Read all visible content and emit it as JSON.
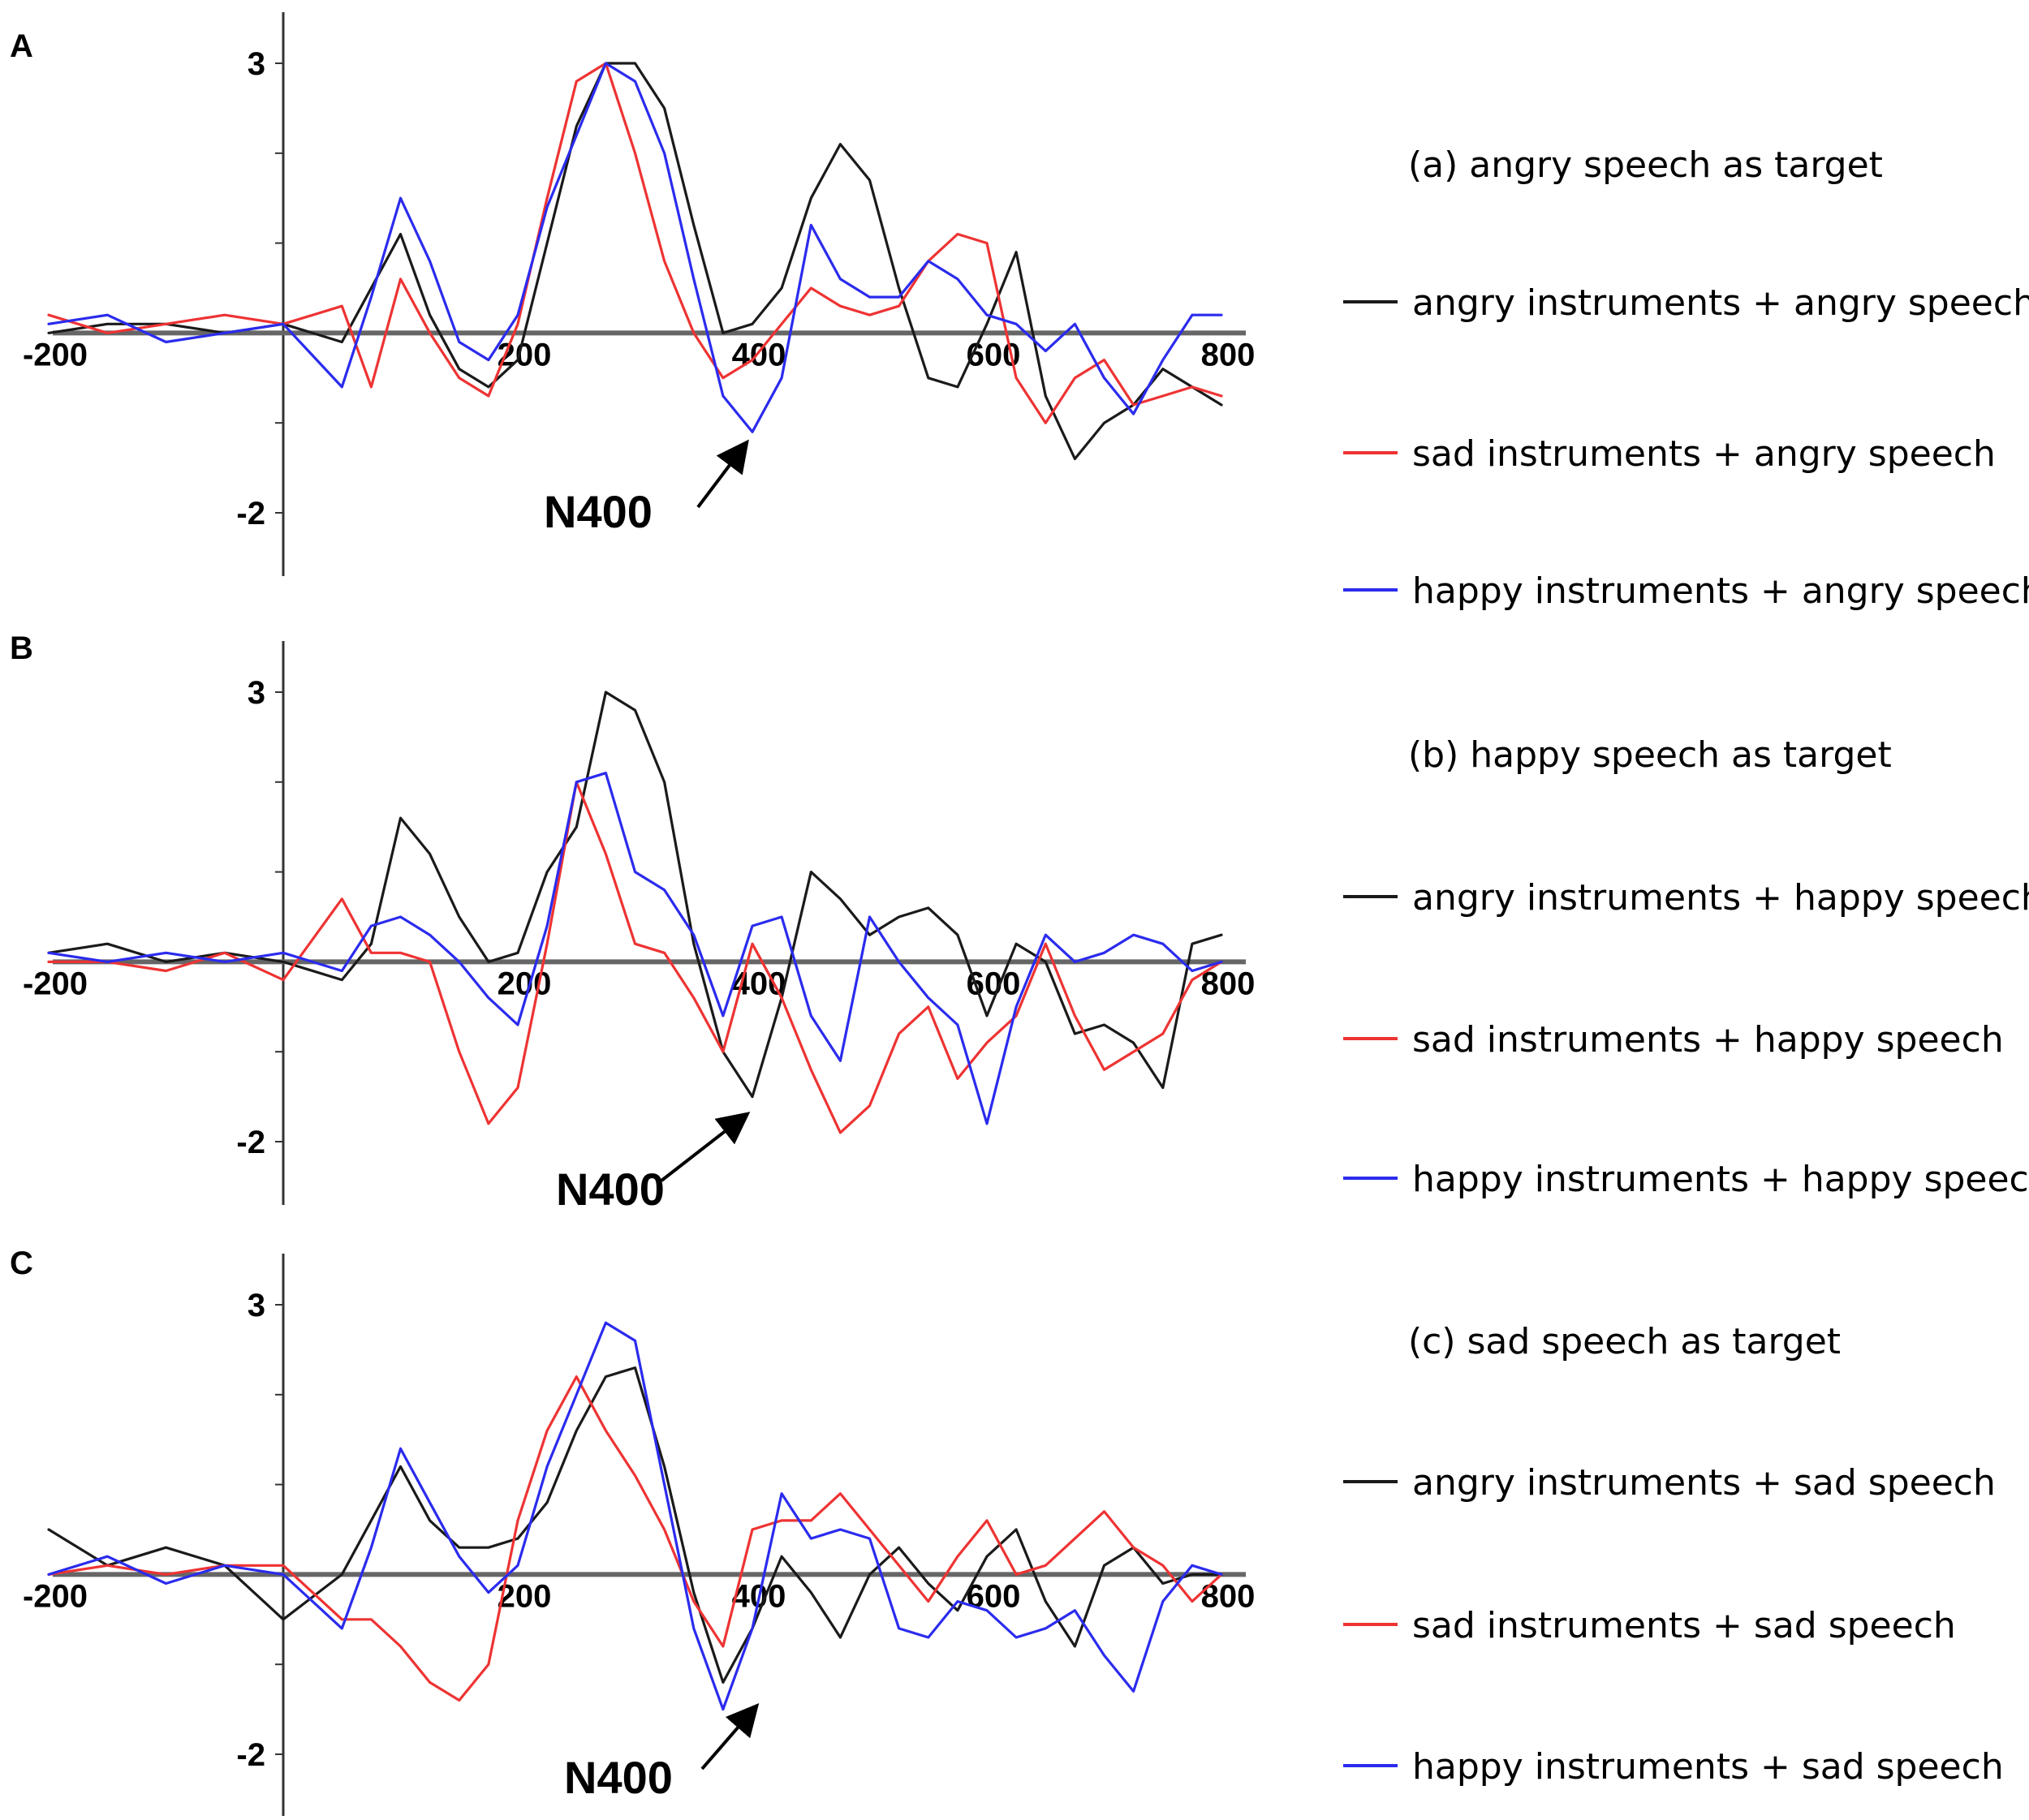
{
  "colors": {
    "angry": "#1a1a1a",
    "sad": "#ee3333",
    "happy": "#2b2bee"
  },
  "chart_data": [
    {
      "type": "line",
      "panel": "A",
      "title": "(a) angry speech as target",
      "annotation": "N400",
      "annotation_target": {
        "x": 370,
        "series": "happy instruments + angry speech"
      },
      "xlim": [
        -200,
        800
      ],
      "ylim": [
        -2,
        3
      ],
      "xticks": [
        -200,
        200,
        400,
        600,
        800
      ],
      "yticks": [
        3,
        -2
      ],
      "x": [
        -200,
        -150,
        -100,
        -50,
        0,
        50,
        75,
        100,
        125,
        150,
        175,
        200,
        225,
        250,
        275,
        300,
        325,
        350,
        375,
        400,
        425,
        450,
        475,
        500,
        525,
        550,
        575,
        600,
        625,
        650,
        675,
        700,
        725,
        750,
        775,
        800
      ],
      "series": [
        {
          "name": "angry instruments + angry speech",
          "color": "angry",
          "values": [
            0.0,
            0.1,
            0.1,
            0.0,
            0.1,
            -0.1,
            0.5,
            1.1,
            0.2,
            -0.4,
            -0.6,
            -0.3,
            1.0,
            2.3,
            3.0,
            3.0,
            2.5,
            1.2,
            0.0,
            0.1,
            0.5,
            1.5,
            2.1,
            1.7,
            0.5,
            -0.5,
            -0.6,
            0.1,
            0.9,
            -0.7,
            -1.4,
            -1.0,
            -0.8,
            -0.4,
            -0.6,
            -0.8
          ]
        },
        {
          "name": "sad instruments + angry speech",
          "color": "sad",
          "values": [
            0.2,
            0.0,
            0.1,
            0.2,
            0.1,
            0.3,
            -0.6,
            0.6,
            0.0,
            -0.5,
            -0.7,
            0.1,
            1.5,
            2.8,
            3.0,
            2.0,
            0.8,
            0.0,
            -0.5,
            -0.3,
            0.1,
            0.5,
            0.3,
            0.2,
            0.3,
            0.8,
            1.1,
            1.0,
            -0.5,
            -1.0,
            -0.5,
            -0.3,
            -0.8,
            -0.7,
            -0.6,
            -0.7
          ]
        },
        {
          "name": "happy instruments + angry speech",
          "color": "happy",
          "values": [
            0.1,
            0.2,
            -0.1,
            0.0,
            0.1,
            -0.6,
            0.4,
            1.5,
            0.8,
            -0.1,
            -0.3,
            0.2,
            1.4,
            2.2,
            3.0,
            2.8,
            2.0,
            0.6,
            -0.7,
            -1.1,
            -0.5,
            1.2,
            0.6,
            0.4,
            0.4,
            0.8,
            0.6,
            0.2,
            0.1,
            -0.2,
            0.1,
            -0.5,
            -0.9,
            -0.3,
            0.2,
            0.2
          ]
        }
      ]
    },
    {
      "type": "line",
      "panel": "B",
      "title": "(b) happy speech as target",
      "annotation": "N400",
      "annotation_target": {
        "x": 360,
        "series": "angry instruments + happy speech"
      },
      "xlim": [
        -200,
        800
      ],
      "ylim": [
        -2,
        3
      ],
      "xticks": [
        -200,
        200,
        400,
        600,
        800
      ],
      "yticks": [
        3,
        -2
      ],
      "x": [
        -200,
        -150,
        -100,
        -50,
        0,
        50,
        75,
        100,
        125,
        150,
        175,
        200,
        225,
        250,
        275,
        300,
        325,
        350,
        375,
        400,
        425,
        450,
        475,
        500,
        525,
        550,
        575,
        600,
        625,
        650,
        675,
        700,
        725,
        750,
        775,
        800
      ],
      "series": [
        {
          "name": "angry instruments + happy speech",
          "color": "angry",
          "values": [
            0.1,
            0.2,
            0.0,
            0.1,
            0.0,
            -0.2,
            0.2,
            1.6,
            1.2,
            0.5,
            0.0,
            0.1,
            1.0,
            1.5,
            3.0,
            2.8,
            2.0,
            0.2,
            -1.0,
            -1.5,
            -0.4,
            1.0,
            0.7,
            0.3,
            0.5,
            0.6,
            0.3,
            -0.6,
            0.2,
            0.0,
            -0.8,
            -0.7,
            -0.9,
            -1.4,
            0.2,
            0.3
          ]
        },
        {
          "name": "sad instruments + happy speech",
          "color": "sad",
          "values": [
            0.0,
            0.0,
            -0.1,
            0.1,
            -0.2,
            0.7,
            0.1,
            0.1,
            0.0,
            -1.0,
            -1.8,
            -1.4,
            0.2,
            2.0,
            1.2,
            0.2,
            0.1,
            -0.4,
            -1.0,
            0.2,
            -0.4,
            -1.2,
            -1.9,
            -1.6,
            -0.8,
            -0.5,
            -1.3,
            -0.9,
            -0.6,
            0.2,
            -0.6,
            -1.2,
            -1.0,
            -0.8,
            -0.2,
            0.0
          ]
        },
        {
          "name": "happy instruments + happy speech",
          "color": "happy",
          "values": [
            0.1,
            0.0,
            0.1,
            0.0,
            0.1,
            -0.1,
            0.4,
            0.5,
            0.3,
            0.0,
            -0.4,
            -0.7,
            0.4,
            2.0,
            2.1,
            1.0,
            0.8,
            0.3,
            -0.6,
            0.4,
            0.5,
            -0.6,
            -1.1,
            0.5,
            0.0,
            -0.4,
            -0.7,
            -1.8,
            -0.5,
            0.3,
            0.0,
            0.1,
            0.3,
            0.2,
            -0.1,
            0.0
          ]
        }
      ]
    },
    {
      "type": "line",
      "panel": "C",
      "title": "(c) sad speech as target",
      "annotation": "N400",
      "annotation_target": {
        "x": 370,
        "series": "happy instruments + sad speech"
      },
      "xlim": [
        -200,
        800
      ],
      "ylim": [
        -2,
        3
      ],
      "xticks": [
        -200,
        200,
        400,
        600,
        800
      ],
      "yticks": [
        3,
        -2
      ],
      "x": [
        -200,
        -150,
        -100,
        -50,
        0,
        50,
        75,
        100,
        125,
        150,
        175,
        200,
        225,
        250,
        275,
        300,
        325,
        350,
        375,
        400,
        425,
        450,
        475,
        500,
        525,
        550,
        575,
        600,
        625,
        650,
        675,
        700,
        725,
        750,
        775,
        800
      ],
      "series": [
        {
          "name": "angry instruments + sad speech",
          "color": "angry",
          "values": [
            0.5,
            0.1,
            0.3,
            0.1,
            -0.5,
            0.0,
            0.6,
            1.2,
            0.6,
            0.3,
            0.3,
            0.4,
            0.8,
            1.6,
            2.2,
            2.3,
            1.2,
            -0.2,
            -1.2,
            -0.6,
            0.2,
            -0.2,
            -0.7,
            0.0,
            0.3,
            -0.1,
            -0.4,
            0.2,
            0.5,
            -0.3,
            -0.8,
            0.1,
            0.3,
            -0.1,
            0.0,
            0.0
          ]
        },
        {
          "name": "sad instruments + sad speech",
          "color": "sad",
          "values": [
            0.0,
            0.1,
            0.0,
            0.1,
            0.1,
            -0.5,
            -0.5,
            -0.8,
            -1.2,
            -1.4,
            -1.0,
            0.6,
            1.6,
            2.2,
            1.6,
            1.1,
            0.5,
            -0.3,
            -0.8,
            0.5,
            0.6,
            0.6,
            0.9,
            0.5,
            0.1,
            -0.3,
            0.2,
            0.6,
            0.0,
            0.1,
            0.4,
            0.7,
            0.3,
            0.1,
            -0.3,
            0.0
          ]
        },
        {
          "name": "happy instruments + sad speech",
          "color": "happy",
          "values": [
            0.0,
            0.2,
            -0.1,
            0.1,
            0.0,
            -0.6,
            0.3,
            1.4,
            0.8,
            0.2,
            -0.2,
            0.1,
            1.2,
            2.0,
            2.8,
            2.6,
            1.0,
            -0.6,
            -1.5,
            -0.6,
            0.9,
            0.4,
            0.5,
            0.4,
            -0.6,
            -0.7,
            -0.3,
            -0.4,
            -0.7,
            -0.6,
            -0.4,
            -0.9,
            -1.3,
            -0.3,
            0.1,
            0.0
          ]
        }
      ]
    }
  ]
}
